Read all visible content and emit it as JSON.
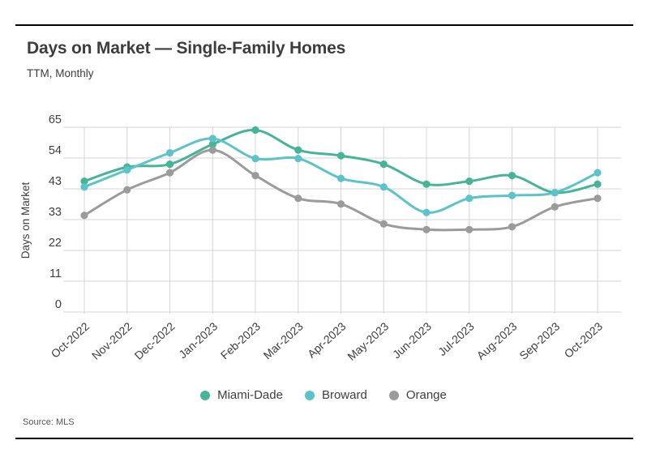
{
  "header": {
    "title": "Days on Market — Single-Family Homes",
    "subtitle": "TTM, Monthly"
  },
  "chart_data": {
    "type": "line",
    "title": "Days on Market — Single-Family Homes",
    "subtitle": "TTM, Monthly",
    "xlabel": "",
    "ylabel": "Days on Market",
    "ylim": [
      0,
      65
    ],
    "ytick_labels": [
      "0",
      "11",
      "22",
      "33",
      "43",
      "54",
      "65"
    ],
    "grid": true,
    "legend_position": "bottom-center",
    "categories": [
      "Oct-2022",
      "Nov-2022",
      "Dec-2022",
      "Jan-2023",
      "Feb-2023",
      "Mar-2023",
      "Apr-2023",
      "May-2023",
      "Jun-2023",
      "Jul-2023",
      "Aug-2023",
      "Sep-2023",
      "Oct-2023"
    ],
    "series": [
      {
        "name": "Miami-Dade",
        "color": "#45b497",
        "values": [
          46,
          51,
          52,
          59,
          64,
          57,
          55,
          52,
          45,
          46,
          48,
          42,
          45
        ]
      },
      {
        "name": "Broward",
        "color": "#5cc3c8",
        "values": [
          44,
          50,
          56,
          61,
          54,
          54,
          47,
          44,
          35,
          40,
          41,
          42,
          49
        ]
      },
      {
        "name": "Orange",
        "color": "#9b9b9b",
        "values": [
          34,
          43,
          49,
          57,
          48,
          40,
          38,
          31,
          29,
          29,
          30,
          37,
          40
        ]
      }
    ]
  },
  "source": {
    "label": "Source: MLS"
  },
  "colors": {
    "rule": "#000000",
    "grid": "#d4d4d4",
    "text": "#3e3e3e",
    "muted": "#575757"
  }
}
